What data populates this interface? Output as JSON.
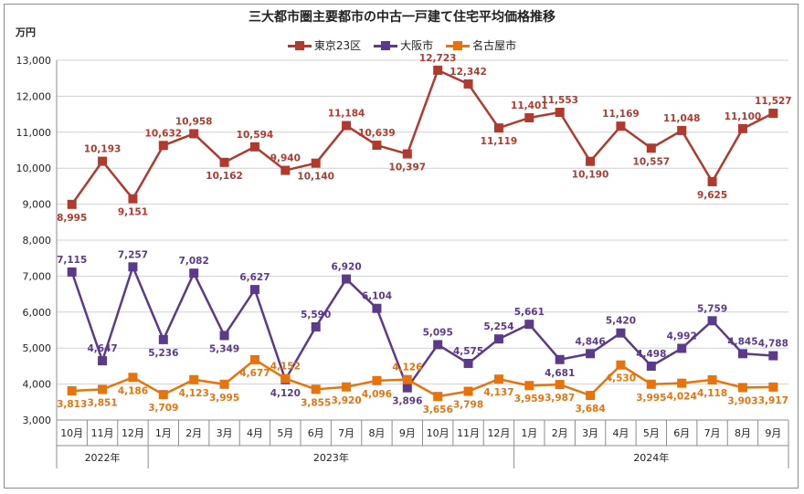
{
  "chart_data": {
    "type": "line",
    "title": "三大都市圏主要都市の中古一戸建て住宅平均価格推移",
    "ylabel": "万円",
    "ylim": [
      3000,
      13000
    ],
    "yticks": [
      "3,000",
      "4,000",
      "5,000",
      "6,000",
      "7,000",
      "8,000",
      "9,000",
      "10,000",
      "11,000",
      "12,000",
      "13,000"
    ],
    "ytick_values": [
      3000,
      4000,
      5000,
      6000,
      7000,
      8000,
      9000,
      10000,
      11000,
      12000,
      13000
    ],
    "categories": [
      "10月",
      "11月",
      "12月",
      "1月",
      "2月",
      "3月",
      "4月",
      "5月",
      "6月",
      "7月",
      "8月",
      "9月",
      "10月",
      "11月",
      "12月",
      "1月",
      "2月",
      "3月",
      "4月",
      "5月",
      "6月",
      "7月",
      "8月",
      "9月"
    ],
    "year_groups": [
      {
        "label": "2022年",
        "start": 0,
        "count": 3
      },
      {
        "label": "2023年",
        "start": 3,
        "count": 12
      },
      {
        "label": "2024年",
        "start": 15,
        "count": 9
      }
    ],
    "grid": true,
    "legend": "top-center",
    "series": [
      {
        "name": "東京23区",
        "color": "#b03a2e",
        "values": [
          8995,
          10193,
          9151,
          10632,
          10958,
          10162,
          10594,
          9940,
          10140,
          11184,
          10639,
          10397,
          12723,
          12342,
          11119,
          11401,
          11553,
          10190,
          11169,
          10557,
          11048,
          9625,
          11100,
          11527
        ],
        "labels": [
          "8,995",
          "10,193",
          "9,151",
          "10,632",
          "10,958",
          "10,162",
          "10,594",
          "9,940",
          "10,140",
          "11,184",
          "10,639",
          "10,397",
          "12,723",
          "12,342",
          "11,119",
          "11,401",
          "11,553",
          "10,190",
          "11,169",
          "10,557",
          "11,048",
          "9,625",
          "11,100",
          "11,527"
        ],
        "label_pos": [
          "below",
          "above",
          "below",
          "above",
          "above",
          "below",
          "above",
          "above",
          "below",
          "above",
          "above",
          "below",
          "above",
          "above",
          "below",
          "above",
          "above",
          "below",
          "above",
          "below",
          "above",
          "below",
          "above",
          "above"
        ]
      },
      {
        "name": "大阪市",
        "color": "#5b3a8c",
        "values": [
          7115,
          4647,
          7257,
          5236,
          7082,
          5349,
          6627,
          4120,
          5590,
          6920,
          6104,
          3896,
          5095,
          4575,
          5254,
          5661,
          4681,
          4846,
          5420,
          4498,
          4992,
          5759,
          4845,
          4788
        ],
        "labels": [
          "7,115",
          "4,647",
          "7,257",
          "5,236",
          "7,082",
          "5,349",
          "6,627",
          "4,120",
          "5,590",
          "6,920",
          "6,104",
          "3,896",
          "5,095",
          "4,575",
          "5,254",
          "5,661",
          "4,681",
          "4,846",
          "5,420",
          "4,498",
          "4,992",
          "5,759",
          "4,845",
          "4,788"
        ],
        "label_pos": [
          "above",
          "above",
          "above",
          "below",
          "above",
          "below",
          "above",
          "below",
          "above",
          "above",
          "above",
          "below",
          "above",
          "above",
          "above",
          "above",
          "below",
          "above",
          "above",
          "above",
          "above",
          "above",
          "above",
          "above"
        ]
      },
      {
        "name": "名古屋市",
        "color": "#e8730c",
        "values": [
          3813,
          3851,
          4186,
          3709,
          4123,
          3995,
          4677,
          4152,
          3855,
          3920,
          4096,
          4126,
          3656,
          3798,
          4137,
          3959,
          3987,
          3684,
          4530,
          3995,
          4024,
          4118,
          3903,
          3917
        ],
        "labels": [
          "3,813",
          "3,851",
          "4,186",
          "3,709",
          "4,123",
          "3,995",
          "4,677",
          "4,152",
          "3,855",
          "3,920",
          "4,096",
          "4,126",
          "3,656",
          "3,798",
          "4,137",
          "3,959",
          "3,987",
          "3,684",
          "4,530",
          "3,995",
          "4,024",
          "4,118",
          "3,903",
          "3,917"
        ],
        "label_pos": [
          "below",
          "below",
          "below",
          "below",
          "below",
          "below",
          "below",
          "above",
          "below",
          "below",
          "below",
          "above",
          "below",
          "below",
          "below",
          "below",
          "below",
          "below",
          "below",
          "below",
          "below",
          "below",
          "below",
          "below"
        ]
      }
    ]
  }
}
